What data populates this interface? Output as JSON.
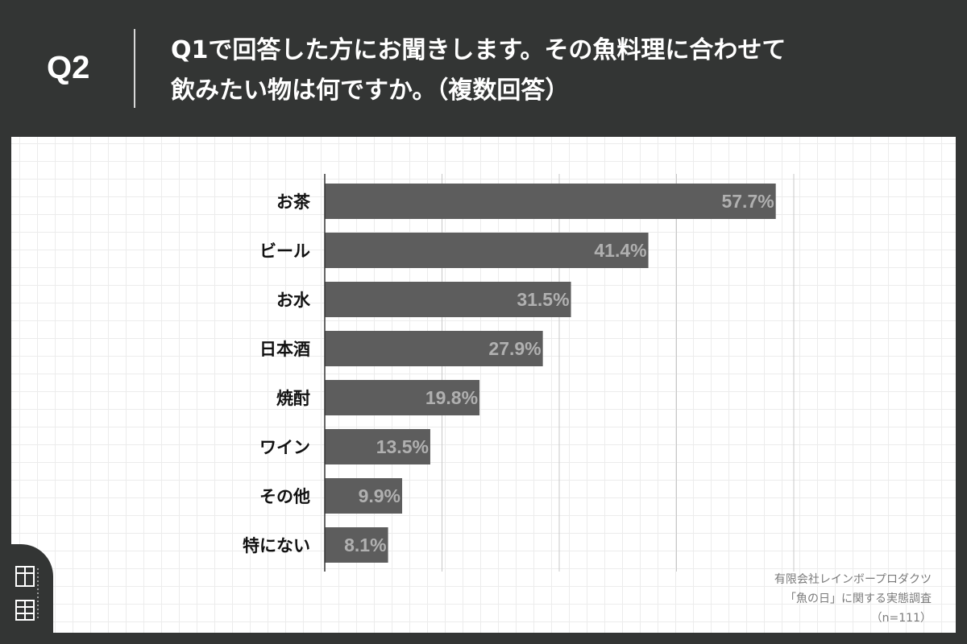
{
  "header": {
    "question_number": "Q2",
    "title_line1": "Q1で回答した方にお聞きします。その魚料理に合わせて",
    "title_line2": "飲みたい物は何ですか。（複数回答）"
  },
  "source": {
    "line1": "有限会社レインボープロダクツ",
    "line2": "「魚の日」に関する実態調査",
    "line3": "（n=111）"
  },
  "colors": {
    "background": "#333534",
    "bar": "#5d5d5d",
    "bar_label": "#b0b0b0",
    "gridline": "#c8c8c8",
    "axis": "#333333"
  },
  "chart_data": {
    "type": "bar",
    "orientation": "horizontal",
    "categories": [
      "お茶",
      "ビール",
      "お水",
      "日本酒",
      "焼酎",
      "ワイン",
      "その他",
      "特にない"
    ],
    "values": [
      57.7,
      41.4,
      31.5,
      27.9,
      19.8,
      13.5,
      9.9,
      8.1
    ],
    "value_labels": [
      "57.7%",
      "41.4%",
      "31.5%",
      "27.9%",
      "19.8%",
      "13.5%",
      "9.9%",
      "8.1%"
    ],
    "xlim": [
      0,
      60
    ],
    "grid": true,
    "legend": "none"
  }
}
